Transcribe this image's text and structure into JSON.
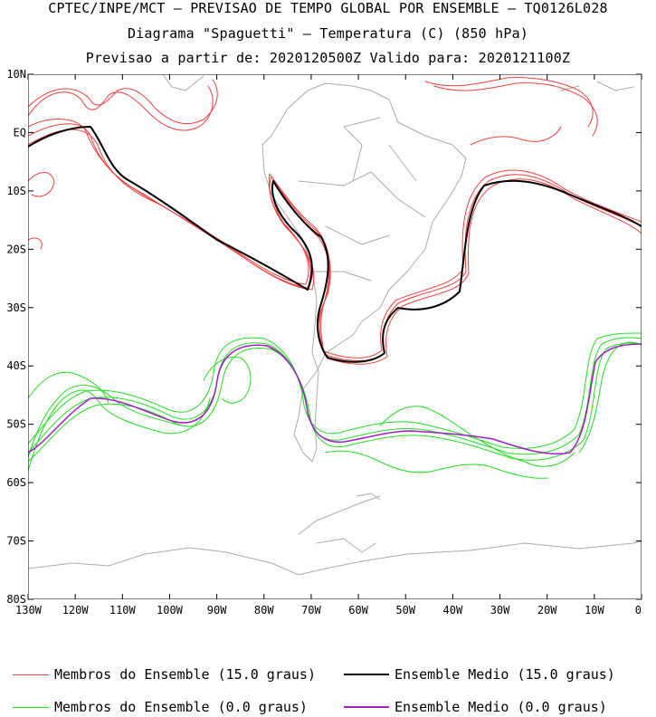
{
  "titles": {
    "line1": "CPTEC/INPE/MCT – PREVISAO DE TEMPO GLOBAL POR ENSEMBLE – TQ0126L028",
    "line2": "Diagrama \"Spaguetti\" – Temperatura (C) (850 hPa)",
    "line3": "Previsao a partir de: 2020120500Z  Valido para: 2020121100Z"
  },
  "axes": {
    "lat_labels": [
      "10N",
      "EQ",
      "10S",
      "20S",
      "30S",
      "40S",
      "50S",
      "60S",
      "70S",
      "80S"
    ],
    "lon_labels": [
      "130W",
      "120W",
      "110W",
      "100W",
      "90W",
      "80W",
      "70W",
      "60W",
      "50W",
      "40W",
      "30W",
      "20W",
      "10W",
      "0"
    ]
  },
  "legend": {
    "members_15": "Membros do Ensemble (15.0 graus)",
    "mean_15": "Ensemble Medio (15.0 graus)",
    "members_0": "Membros do Ensemble (0.0 graus)",
    "mean_0": "Ensemble Medio (0.0 graus)"
  },
  "colors": {
    "members_15": "#f04040",
    "mean_15": "#000000",
    "members_0": "#22dd22",
    "mean_0": "#a020c0",
    "coast": "#aaaaaa"
  },
  "map_extent": {
    "lon_min": -130,
    "lon_max": 0,
    "lat_min": -80,
    "lat_max": 10
  }
}
